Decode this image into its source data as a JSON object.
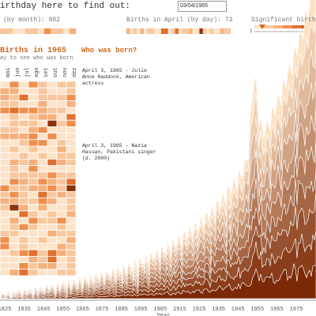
{
  "header": {
    "prompt": "irthday here to find out:",
    "date_input": "03/04/1965"
  },
  "stats": {
    "by_month": "(by month): 882",
    "by_day": "Births in April (by day): 73",
    "significant": "Significant births o",
    "slider_min": "1"
  },
  "heatmap": {
    "title": "Births in 1965",
    "hint": "ay to see who was born",
    "months": [
      "mai",
      "jun",
      "jul",
      "ago",
      "set",
      "out",
      "nov",
      "dez"
    ]
  },
  "panel": {
    "title": "Who was born?",
    "entries": [
      "April 3, 1965 - Julie Anne Haddock, American actress",
      "April 3, 1965 - Nazia Hassan, Pakistani singer (d. 2000)"
    ]
  },
  "streamgraph": {
    "x_ticks": [
      "1825",
      "1835",
      "1845",
      "1855",
      "1865",
      "1875",
      "1885",
      "1895",
      "1905",
      "1915",
      "1925",
      "1935",
      "1945",
      "1955",
      "1965",
      "1975"
    ],
    "x_label": "Year"
  }
}
